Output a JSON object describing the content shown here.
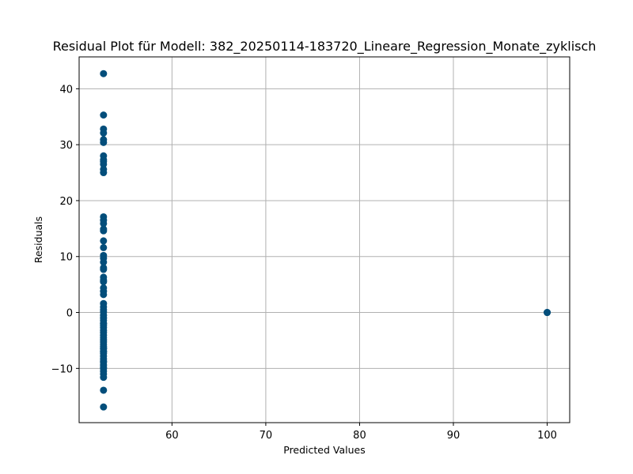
{
  "chart_data": {
    "type": "scatter",
    "title": "Residual Plot für Modell: 382_20250114-183720_Lineare_Regression_Monate_zyklisch",
    "xlabel": "Predicted Values",
    "ylabel": "Residuals",
    "xlim": [
      50.1,
      102.4
    ],
    "ylim": [
      -19.7,
      45.7
    ],
    "xticks": [
      60,
      70,
      80,
      90,
      100
    ],
    "yticks": [
      -10,
      0,
      10,
      20,
      30,
      40
    ],
    "ytick_labels": [
      "−10",
      "0",
      "10",
      "20",
      "30",
      "40"
    ],
    "grid": true,
    "marker_color": "#034e7b",
    "series": [
      {
        "x": [
          52.7,
          52.7,
          52.7,
          52.7,
          52.7,
          52.7,
          52.7,
          52.7,
          52.7,
          52.7,
          52.7,
          52.7,
          52.7,
          52.7,
          52.7,
          52.7,
          52.7,
          52.7,
          52.7,
          52.7,
          52.7,
          52.7,
          52.7,
          52.7,
          52.7,
          52.7,
          52.7,
          52.7,
          52.7,
          52.7,
          52.7,
          52.7,
          52.7,
          52.7,
          52.7,
          52.7,
          52.7,
          52.7,
          52.7,
          52.7,
          52.7,
          52.7,
          52.7,
          52.7,
          52.7,
          52.7,
          52.7,
          52.7,
          52.7,
          52.7,
          52.7,
          52.7,
          52.7,
          52.7,
          52.7,
          52.7,
          52.7,
          52.7,
          52.7,
          52.7,
          52.7,
          52.7,
          52.7,
          52.7,
          52.7,
          52.7,
          100.0,
          100.0
        ],
        "y": [
          42.7,
          35.3,
          32.8,
          32.1,
          30.9,
          30.4,
          28.0,
          27.3,
          27.0,
          26.5,
          25.6,
          25.0,
          17.1,
          16.5,
          15.9,
          14.9,
          14.6,
          12.8,
          11.6,
          10.2,
          9.7,
          9.0,
          8.0,
          7.7,
          6.3,
          5.8,
          5.5,
          4.4,
          3.8,
          3.2,
          1.6,
          1.0,
          0.5,
          0.1,
          -0.5,
          -1.0,
          -1.4,
          -1.9,
          -2.3,
          -2.7,
          -3.2,
          -3.6,
          -4.1,
          -4.5,
          -4.9,
          -5.3,
          -5.7,
          -6.1,
          -6.5,
          -6.9,
          -7.3,
          -7.8,
          -8.3,
          -8.9,
          -9.4,
          -10.0,
          -10.5,
          -11.0,
          -11.6,
          -13.9,
          -16.9,
          -2.0,
          -6.4,
          -7.0,
          -8.7,
          -9.8,
          0.0,
          0.0
        ]
      }
    ]
  }
}
